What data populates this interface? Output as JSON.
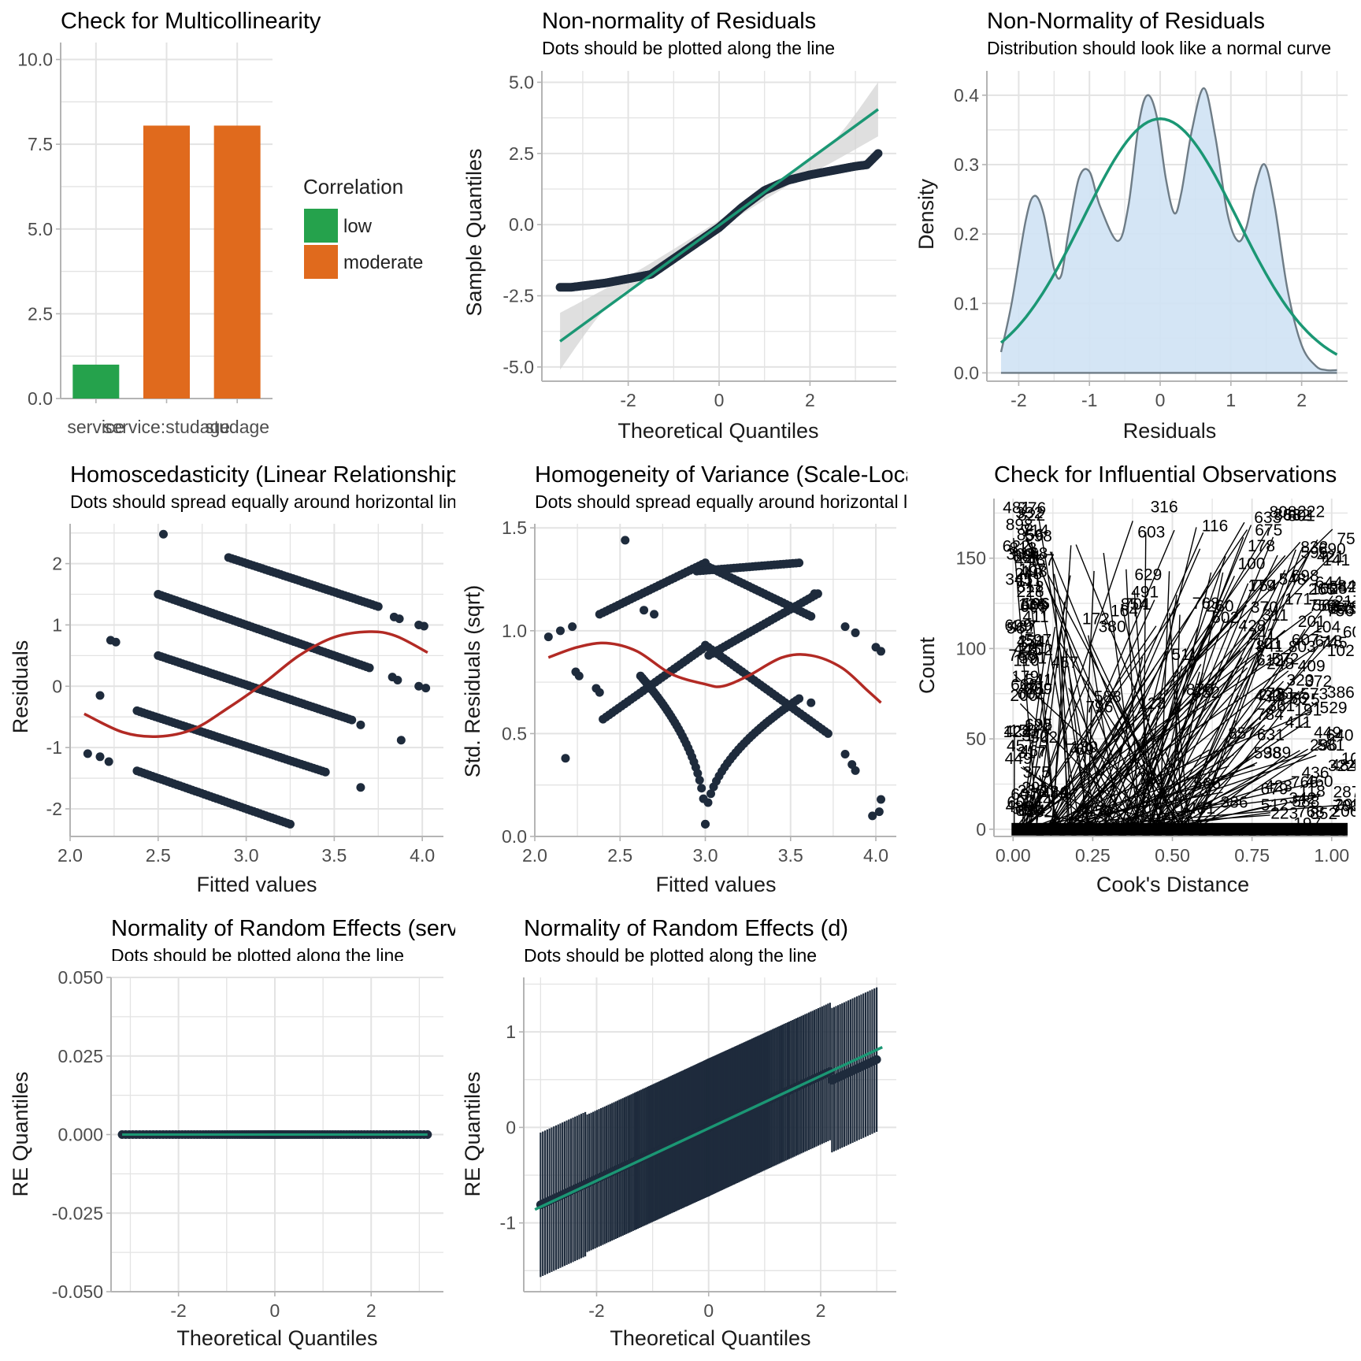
{
  "colors": {
    "grid": "#e3e3e3",
    "axis": "#b4b4b4",
    "point": "#1e2b3c",
    "smooth_green": "#1b9774",
    "smooth_red": "#b22a24",
    "band": "#d2d2d2",
    "density_fill": "#cfe2f4",
    "density_line": "#6e7c86",
    "corr_low": "#25a24c",
    "corr_moderate": "#e06a1d",
    "label_text": "#000000"
  },
  "chart_data": [
    {
      "id": "p1",
      "type": "bar",
      "title": "Check for Multicollinearity",
      "subtitle": "",
      "xlabel": "",
      "ylabel": "",
      "ylim": [
        0,
        10.5
      ],
      "yticks": [
        0,
        2.5,
        5,
        7.5,
        10
      ],
      "ytick_labels": [
        "0.0",
        "2.5",
        "5.0",
        "7.5",
        "10.0"
      ],
      "categories": [
        "service",
        "service:studage",
        "studage"
      ],
      "values": [
        1.0,
        8.05,
        8.05
      ],
      "correlation": [
        "low",
        "moderate",
        "moderate"
      ],
      "legend": {
        "title": "Correlation",
        "items": [
          "low",
          "moderate"
        ],
        "position": "right"
      },
      "grid": true
    },
    {
      "id": "p2",
      "type": "scatter",
      "title": "Non-normality of Residuals",
      "subtitle": "Dots should be plotted along the line",
      "xlabel": "Theoretical Quantiles",
      "ylabel": "Sample Quantiles",
      "xlim": [
        -3.9,
        3.9
      ],
      "ylim": [
        -5.5,
        5.4
      ],
      "xticks": [
        -2,
        0,
        2
      ],
      "xtick_labels": [
        "-2",
        "0",
        "2"
      ],
      "yticks": [
        -5,
        -2.5,
        0,
        2.5,
        5
      ],
      "ytick_labels": [
        "-5.0",
        "-2.5",
        "0.0",
        "2.5",
        "5.0"
      ],
      "points": {
        "n": 300,
        "knots_x": [
          -3.5,
          -3.25,
          -3.0,
          -2.5,
          -2.0,
          -1.5,
          -1.0,
          -0.5,
          0.0,
          0.5,
          1.0,
          1.5,
          2.0,
          2.5,
          3.0,
          3.25,
          3.5
        ],
        "knots_y": [
          -2.2,
          -2.2,
          -2.15,
          -2.05,
          -1.9,
          -1.75,
          -1.2,
          -0.65,
          -0.1,
          0.6,
          1.2,
          1.55,
          1.75,
          1.9,
          2.05,
          2.1,
          2.5
        ]
      },
      "fit_line": {
        "x": [
          -3.5,
          3.5
        ],
        "y": [
          -4.1,
          4.05
        ]
      },
      "band": {
        "x": [
          -3.5,
          -2.5,
          -1.5,
          0,
          1.5,
          2.5,
          3.5
        ],
        "lower": [
          -5.1,
          -2.95,
          -1.75,
          -0.15,
          1.35,
          2.2,
          3.1
        ],
        "upper": [
          -3.1,
          -2.25,
          -1.35,
          0.15,
          1.75,
          2.9,
          5.0
        ]
      },
      "grid": true
    },
    {
      "id": "p3",
      "type": "area",
      "title": "Non-Normality of Residuals",
      "subtitle": "Distribution should look like a normal curve",
      "xlabel": "Residuals",
      "ylabel": "Density",
      "xlim": [
        -2.45,
        2.65
      ],
      "ylim": [
        -0.012,
        0.435
      ],
      "xticks": [
        -2,
        -1,
        0,
        1,
        2
      ],
      "xtick_labels": [
        "-2",
        "-1",
        "0",
        "1",
        "2"
      ],
      "yticks": [
        0,
        0.1,
        0.2,
        0.3,
        0.4
      ],
      "ytick_labels": [
        "0.0",
        "0.1",
        "0.2",
        "0.3",
        "0.4"
      ],
      "density": {
        "x": [
          -2.25,
          -2.1,
          -1.9,
          -1.78,
          -1.65,
          -1.5,
          -1.4,
          -1.3,
          -1.15,
          -1.0,
          -0.85,
          -0.6,
          -0.45,
          -0.3,
          -0.18,
          -0.05,
          0.08,
          0.2,
          0.3,
          0.45,
          0.62,
          0.78,
          0.95,
          1.1,
          1.22,
          1.35,
          1.48,
          1.62,
          1.8,
          2.0,
          2.2,
          2.35,
          2.5
        ],
        "y": [
          0.03,
          0.1,
          0.22,
          0.255,
          0.23,
          0.15,
          0.14,
          0.2,
          0.28,
          0.29,
          0.24,
          0.19,
          0.24,
          0.36,
          0.4,
          0.37,
          0.28,
          0.23,
          0.26,
          0.35,
          0.41,
          0.34,
          0.23,
          0.19,
          0.21,
          0.27,
          0.3,
          0.24,
          0.12,
          0.04,
          0.01,
          0.004,
          0.004
        ]
      },
      "normal_curve": {
        "mean": 0,
        "sd": 1.09,
        "xrange": [
          -2.25,
          2.5
        ]
      },
      "grid": true
    },
    {
      "id": "p4",
      "type": "scatter",
      "title": "Homoscedasticity (Linear Relationship)",
      "subtitle": "Dots should spread equally around horizontal line",
      "xlabel": "Fitted values",
      "ylabel": "Residuals",
      "xlim": [
        2.0,
        4.12
      ],
      "ylim": [
        -2.45,
        2.65
      ],
      "xticks": [
        2.0,
        2.5,
        3.0,
        3.5,
        4.0
      ],
      "xtick_labels": [
        "2.0",
        "2.5",
        "3.0",
        "3.5",
        "4.0"
      ],
      "yticks": [
        -2,
        -1,
        0,
        1,
        2
      ],
      "ytick_labels": [
        "-2",
        "-1",
        "0",
        "1",
        "2"
      ],
      "bands": [
        {
          "x": [
            2.9,
            3.75
          ],
          "y": [
            2.1,
            1.3
          ]
        },
        {
          "x": [
            2.5,
            3.7
          ],
          "y": [
            1.5,
            0.3
          ]
        },
        {
          "x": [
            2.5,
            3.6
          ],
          "y": [
            0.5,
            -0.55
          ]
        },
        {
          "x": [
            2.38,
            3.45
          ],
          "y": [
            -0.4,
            -1.4
          ]
        },
        {
          "x": [
            2.38,
            3.25
          ],
          "y": [
            -1.38,
            -2.25
          ]
        }
      ],
      "extra_points": [
        {
          "x": 2.1,
          "y": -1.1
        },
        {
          "x": 2.17,
          "y": -1.15
        },
        {
          "x": 2.22,
          "y": -1.23
        },
        {
          "x": 2.17,
          "y": -0.15
        },
        {
          "x": 2.23,
          "y": 0.75
        },
        {
          "x": 2.26,
          "y": 0.72
        },
        {
          "x": 2.53,
          "y": 2.48
        },
        {
          "x": 3.65,
          "y": -0.63
        },
        {
          "x": 3.65,
          "y": -1.65
        },
        {
          "x": 3.88,
          "y": -0.88
        },
        {
          "x": 3.83,
          "y": 0.15
        },
        {
          "x": 3.86,
          "y": 0.1
        },
        {
          "x": 3.84,
          "y": 1.13
        },
        {
          "x": 3.87,
          "y": 1.1
        },
        {
          "x": 3.98,
          "y": 1.0
        },
        {
          "x": 4.01,
          "y": 0.98
        },
        {
          "x": 3.98,
          "y": 0.0
        },
        {
          "x": 4.02,
          "y": -0.03
        }
      ],
      "smooth": {
        "x": [
          2.08,
          2.3,
          2.5,
          2.7,
          2.9,
          3.1,
          3.3,
          3.5,
          3.7,
          3.85,
          4.03
        ],
        "y": [
          -0.45,
          -0.75,
          -0.82,
          -0.7,
          -0.35,
          0.05,
          0.5,
          0.8,
          0.89,
          0.82,
          0.55
        ]
      },
      "grid": true
    },
    {
      "id": "p5",
      "type": "scatter",
      "title": "Homogeneity of Variance (Scale-Location)",
      "subtitle": "Dots should spread equally around horizontal line",
      "xlabel": "Fitted values",
      "ylabel": "Std. Residuals (sqrt)",
      "xlim": [
        2.0,
        4.12
      ],
      "ylim": [
        0,
        1.52
      ],
      "xticks": [
        2.0,
        2.5,
        3.0,
        3.5,
        4.0
      ],
      "xtick_labels": [
        "2.0",
        "2.5",
        "3.0",
        "3.5",
        "4.0"
      ],
      "yticks": [
        0,
        0.5,
        1.0,
        1.5
      ],
      "ytick_labels": [
        "0.0",
        "0.5",
        "1.0",
        "1.5"
      ],
      "line_bands": [
        {
          "x": [
            2.38,
            3.0
          ],
          "y": [
            1.08,
            1.33
          ]
        },
        {
          "x": [
            2.4,
            2.98
          ],
          "y": [
            0.57,
            0.91
          ]
        },
        {
          "x": [
            3.02,
            3.62
          ],
          "y": [
            1.31,
            1.07
          ]
        },
        {
          "x": [
            3.0,
            3.72
          ],
          "y": [
            0.93,
            0.5
          ]
        },
        {
          "x": [
            3.02,
            3.66
          ],
          "y": [
            0.88,
            1.18
          ]
        },
        {
          "x": [
            2.95,
            3.55
          ],
          "y": [
            1.29,
            1.33
          ]
        }
      ],
      "cusps": [
        {
          "center": 3.0,
          "x_from": 2.62,
          "x_to": 3.0,
          "top": 0.78,
          "bottom": 0.06
        },
        {
          "center": 3.0,
          "x_from": 3.0,
          "x_to": 3.55,
          "top": 0.67,
          "bottom": 0.06
        }
      ],
      "extra_points": [
        {
          "x": 2.08,
          "y": 0.97
        },
        {
          "x": 2.15,
          "y": 1.0
        },
        {
          "x": 2.18,
          "y": 0.38
        },
        {
          "x": 2.22,
          "y": 1.02
        },
        {
          "x": 2.24,
          "y": 0.8
        },
        {
          "x": 2.26,
          "y": 0.78
        },
        {
          "x": 2.36,
          "y": 0.72
        },
        {
          "x": 2.38,
          "y": 0.7
        },
        {
          "x": 2.53,
          "y": 1.44
        },
        {
          "x": 2.64,
          "y": 1.1
        },
        {
          "x": 2.7,
          "y": 1.08
        },
        {
          "x": 3.62,
          "y": 0.65
        },
        {
          "x": 3.64,
          "y": 1.18
        },
        {
          "x": 3.82,
          "y": 1.02
        },
        {
          "x": 3.88,
          "y": 0.99
        },
        {
          "x": 3.82,
          "y": 0.4
        },
        {
          "x": 3.86,
          "y": 0.35
        },
        {
          "x": 3.88,
          "y": 0.32
        },
        {
          "x": 4.0,
          "y": 0.92
        },
        {
          "x": 4.03,
          "y": 0.9
        },
        {
          "x": 3.98,
          "y": 0.1
        },
        {
          "x": 4.02,
          "y": 0.12
        },
        {
          "x": 4.03,
          "y": 0.18
        }
      ],
      "smooth": {
        "x": [
          2.08,
          2.25,
          2.42,
          2.6,
          2.8,
          3.0,
          3.1,
          3.25,
          3.45,
          3.62,
          3.8,
          3.95,
          4.03
        ],
        "y": [
          0.87,
          0.92,
          0.94,
          0.9,
          0.79,
          0.74,
          0.73,
          0.78,
          0.87,
          0.88,
          0.82,
          0.71,
          0.65
        ]
      },
      "grid": true
    },
    {
      "id": "p6",
      "type": "scatter",
      "title": "Check for Influential Observations",
      "subtitle": "",
      "xlabel": "Cook's Distance",
      "ylabel": "Count",
      "xlim": [
        -0.06,
        1.05
      ],
      "ylim": [
        -4,
        183
      ],
      "xticks": [
        0,
        0.25,
        0.5,
        0.75,
        1.0
      ],
      "xtick_labels": [
        "0.00",
        "0.25",
        "0.50",
        "0.75",
        "1.00"
      ],
      "yticks": [
        0,
        50,
        100,
        150
      ],
      "ytick_labels": [
        "0",
        "50",
        "100",
        "150"
      ],
      "note": "Dense overplotted observation-index labels; thin black leader lines.",
      "grid": true
    },
    {
      "id": "p7",
      "type": "scatter",
      "title": "Normality of Random Effects (service)",
      "subtitle": "Dots should be plotted along the line",
      "xlabel": "Theoretical Quantiles",
      "ylabel": "RE Quantiles",
      "xlim": [
        -3.4,
        3.5
      ],
      "ylim": [
        -0.05,
        0.05
      ],
      "xticks": [
        -2,
        0,
        2
      ],
      "xtick_labels": [
        "-2",
        "0",
        "2"
      ],
      "yticks": [
        -0.05,
        -0.025,
        0,
        0.025,
        0.05
      ],
      "ytick_labels": [
        "-0.050",
        "-0.025",
        "0.000",
        "0.025",
        "0.050"
      ],
      "points": {
        "xrange": [
          -3.17,
          3.17
        ],
        "y": 0
      },
      "grid": true
    },
    {
      "id": "p8",
      "type": "scatter",
      "title": "Normality of Random Effects (d)",
      "subtitle": "Dots should be plotted along the line",
      "xlabel": "Theoretical Quantiles",
      "ylabel": "RE Quantiles",
      "xlim": [
        -3.3,
        3.35
      ],
      "ylim": [
        -1.72,
        1.57
      ],
      "xticks": [
        -2,
        0,
        2
      ],
      "xtick_labels": [
        "-2",
        "0",
        "2"
      ],
      "yticks": [
        -1,
        0,
        1
      ],
      "ytick_labels": [
        "-1",
        "0",
        "1"
      ],
      "points": {
        "n": 240,
        "xrange": [
          -3.0,
          3.0
        ],
        "slope": 0.27,
        "ci_half_width": 0.72
      },
      "fit_line": {
        "x": [
          -3.1,
          3.1
        ],
        "y": [
          -0.86,
          0.84
        ]
      },
      "grid": true
    }
  ]
}
